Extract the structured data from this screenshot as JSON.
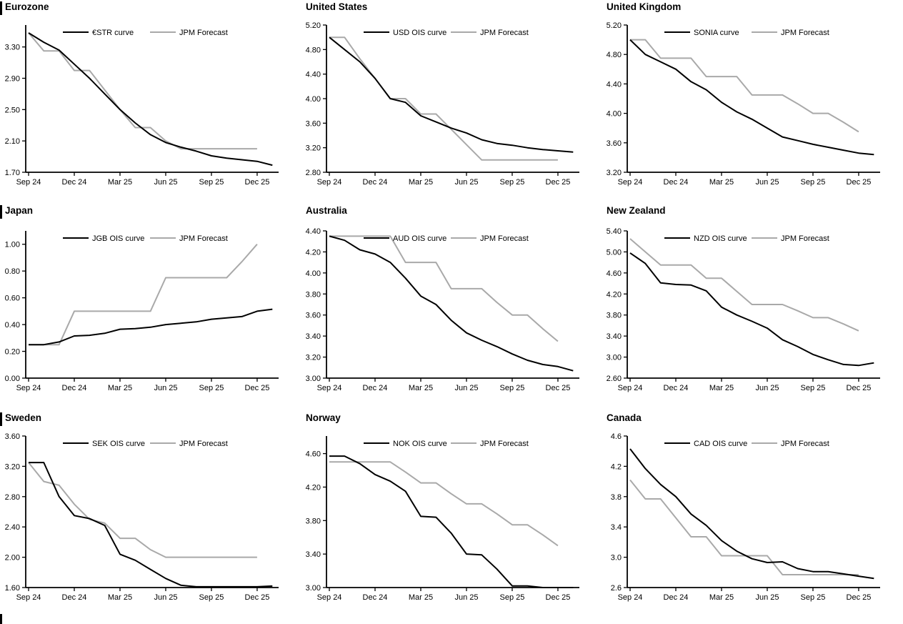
{
  "colors": {
    "ois_line": "#000000",
    "forecast_line": "#a9a9a9",
    "axis": "#000000",
    "background": "#ffffff"
  },
  "x_axis": {
    "tick_labels": [
      "Sep 24",
      "Dec 24",
      "Mar 25",
      "Jun 25",
      "Sep 25",
      "Dec 25"
    ]
  },
  "months": [
    "Sep 24",
    "Oct 24",
    "Nov 24",
    "Dec 24",
    "Jan 25",
    "Feb 25",
    "Mar 25",
    "Apr 25",
    "May 25",
    "Jun 25",
    "Jul 25",
    "Aug 25",
    "Sep 25",
    "Oct 25",
    "Nov 25",
    "Dec 25",
    "Jan 26"
  ],
  "chart_data": [
    {
      "type": "line",
      "title": "Eurozone",
      "edge_bar": true,
      "ylim": [
        1.7,
        3.58
      ],
      "ytick_values": [
        3.3,
        2.9,
        2.5,
        2.1,
        1.7
      ],
      "ytick_labels": [
        "3.30",
        "2.90",
        "2.50",
        "2.10",
        "1.70"
      ],
      "series": [
        {
          "name": "€STR curve",
          "role": "ois",
          "values": [
            3.48,
            3.36,
            3.26,
            3.08,
            2.9,
            2.7,
            2.5,
            2.33,
            2.18,
            2.08,
            2.02,
            1.97,
            1.91,
            1.88,
            1.86,
            1.84,
            1.79
          ]
        },
        {
          "name": "JPM Forecast",
          "role": "forecast",
          "values": [
            3.48,
            3.25,
            3.25,
            3.0,
            3.0,
            2.75,
            2.5,
            2.27,
            2.27,
            2.1,
            2.0,
            2.0,
            2.0,
            2.0,
            2.0,
            2.0
          ]
        }
      ]
    },
    {
      "type": "line",
      "title": "United States",
      "edge_bar": false,
      "ylim": [
        2.8,
        5.2
      ],
      "ytick_values": [
        5.2,
        4.8,
        4.4,
        4.0,
        3.6,
        3.2,
        2.8
      ],
      "ytick_labels": [
        "5.20",
        "4.80",
        "4.40",
        "4.00",
        "3.60",
        "3.20",
        "2.80"
      ],
      "series": [
        {
          "name": "USD OIS curve",
          "role": "ois",
          "values": [
            5.0,
            4.8,
            4.6,
            4.33,
            4.0,
            3.94,
            3.72,
            3.62,
            3.52,
            3.44,
            3.33,
            3.27,
            3.24,
            3.2,
            3.17,
            3.15,
            3.13
          ]
        },
        {
          "name": "JPM Forecast",
          "role": "forecast",
          "values": [
            5.0,
            5.0,
            4.65,
            4.33,
            4.0,
            4.0,
            3.75,
            3.75,
            3.5,
            3.25,
            3.0,
            3.0,
            3.0,
            3.0,
            3.0,
            3.0
          ]
        }
      ]
    },
    {
      "type": "line",
      "title": "United Kingdom",
      "edge_bar": false,
      "ylim": [
        3.2,
        5.2
      ],
      "ytick_values": [
        5.2,
        4.8,
        4.4,
        4.0,
        3.6,
        3.2
      ],
      "ytick_labels": [
        "5.20",
        "4.80",
        "4.40",
        "4.00",
        "3.60",
        "3.20"
      ],
      "series": [
        {
          "name": "SONIA curve",
          "role": "ois",
          "values": [
            5.0,
            4.8,
            4.7,
            4.6,
            4.43,
            4.32,
            4.15,
            4.02,
            3.92,
            3.8,
            3.68,
            3.63,
            3.58,
            3.54,
            3.5,
            3.46,
            3.44
          ]
        },
        {
          "name": "JPM Forecast",
          "role": "forecast",
          "values": [
            5.0,
            5.0,
            4.75,
            4.75,
            4.75,
            4.5,
            4.5,
            4.5,
            4.25,
            4.25,
            4.25,
            4.13,
            4.0,
            4.0,
            3.88,
            3.75
          ]
        }
      ]
    },
    {
      "type": "line",
      "title": "Japan",
      "edge_bar": true,
      "ylim": [
        0.0,
        1.1
      ],
      "ytick_values": [
        1.0,
        0.8,
        0.6,
        0.4,
        0.2,
        0.0
      ],
      "ytick_labels": [
        "1.00",
        "0.80",
        "0.60",
        "0.40",
        "0.20",
        "0.00"
      ],
      "series": [
        {
          "name": "JGB OIS curve",
          "role": "ois",
          "values": [
            0.25,
            0.25,
            0.27,
            0.315,
            0.32,
            0.335,
            0.365,
            0.37,
            0.38,
            0.4,
            0.41,
            0.42,
            0.44,
            0.45,
            0.46,
            0.5,
            0.515
          ]
        },
        {
          "name": "JPM Forecast",
          "role": "forecast",
          "values": [
            0.25,
            0.25,
            0.25,
            0.5,
            0.5,
            0.5,
            0.5,
            0.5,
            0.5,
            0.75,
            0.75,
            0.75,
            0.75,
            0.75,
            0.87,
            1.0
          ]
        }
      ]
    },
    {
      "type": "line",
      "title": "Australia",
      "edge_bar": false,
      "ylim": [
        3.0,
        4.4
      ],
      "ytick_values": [
        4.4,
        4.2,
        4.0,
        3.8,
        3.6,
        3.4,
        3.2,
        3.0
      ],
      "ytick_labels": [
        "4.40",
        "4.20",
        "4.00",
        "3.80",
        "3.60",
        "3.40",
        "3.20",
        "3.00"
      ],
      "series": [
        {
          "name": "AUD OIS curve",
          "role": "ois",
          "values": [
            4.35,
            4.31,
            4.22,
            4.18,
            4.1,
            3.95,
            3.78,
            3.7,
            3.55,
            3.43,
            3.36,
            3.3,
            3.23,
            3.17,
            3.13,
            3.11,
            3.07
          ]
        },
        {
          "name": "JPM Forecast",
          "role": "forecast",
          "values": [
            4.35,
            4.35,
            4.35,
            4.35,
            4.35,
            4.1,
            4.1,
            4.1,
            3.85,
            3.85,
            3.85,
            3.72,
            3.6,
            3.6,
            3.47,
            3.35
          ]
        }
      ]
    },
    {
      "type": "line",
      "title": "New Zealand",
      "edge_bar": false,
      "ylim": [
        2.6,
        5.4
      ],
      "ytick_values": [
        5.4,
        5.0,
        4.6,
        4.2,
        3.8,
        3.4,
        3.0,
        2.6
      ],
      "ytick_labels": [
        "5.40",
        "5.00",
        "4.60",
        "4.20",
        "3.80",
        "3.40",
        "3.00",
        "2.60"
      ],
      "series": [
        {
          "name": "NZD OIS curve",
          "role": "ois",
          "values": [
            4.98,
            4.78,
            4.41,
            4.38,
            4.37,
            4.26,
            3.95,
            3.8,
            3.68,
            3.55,
            3.33,
            3.2,
            3.05,
            2.95,
            2.86,
            2.84,
            2.89
          ]
        },
        {
          "name": "JPM Forecast",
          "role": "forecast",
          "values": [
            5.25,
            5.0,
            4.75,
            4.75,
            4.75,
            4.5,
            4.5,
            4.25,
            4.0,
            4.0,
            4.0,
            3.88,
            3.75,
            3.75,
            3.63,
            3.5
          ]
        }
      ]
    },
    {
      "type": "line",
      "title": "Sweden",
      "edge_bar": true,
      "ylim": [
        1.6,
        3.6
      ],
      "ytick_values": [
        3.6,
        3.2,
        2.8,
        2.4,
        2.0,
        1.6
      ],
      "ytick_labels": [
        "3.60",
        "3.20",
        "2.80",
        "2.40",
        "2.00",
        "1.60"
      ],
      "series": [
        {
          "name": "SEK OIS curve",
          "role": "ois",
          "values": [
            3.25,
            3.25,
            2.8,
            2.55,
            2.51,
            2.42,
            2.04,
            1.96,
            1.84,
            1.72,
            1.63,
            1.61,
            1.61,
            1.61,
            1.61,
            1.61,
            1.62
          ]
        },
        {
          "name": "JPM Forecast",
          "role": "forecast",
          "values": [
            3.25,
            3.0,
            2.95,
            2.7,
            2.5,
            2.45,
            2.25,
            2.25,
            2.1,
            2.0,
            2.0,
            2.0,
            2.0,
            2.0,
            2.0,
            2.0
          ]
        }
      ]
    },
    {
      "type": "line",
      "title": "Norway",
      "edge_bar": false,
      "ylim": [
        3.0,
        4.81
      ],
      "ytick_values": [
        4.6,
        4.2,
        3.8,
        3.4,
        3.0
      ],
      "ytick_labels": [
        "4.60",
        "4.20",
        "3.80",
        "3.40",
        "3.00"
      ],
      "series": [
        {
          "name": "NOK OIS curve",
          "role": "ois",
          "values": [
            4.57,
            4.57,
            4.48,
            4.35,
            4.27,
            4.15,
            3.85,
            3.84,
            3.65,
            3.4,
            3.39,
            3.22,
            3.02,
            3.02,
            3.0,
            3.0,
            3.0
          ]
        },
        {
          "name": "JPM Forecast",
          "role": "forecast",
          "values": [
            4.5,
            4.5,
            4.5,
            4.5,
            4.5,
            4.38,
            4.25,
            4.25,
            4.12,
            4.0,
            4.0,
            3.88,
            3.75,
            3.75,
            3.63,
            3.5
          ]
        }
      ]
    },
    {
      "type": "line",
      "title": "Canada",
      "edge_bar": false,
      "ylim": [
        2.6,
        4.6
      ],
      "ytick_values": [
        4.6,
        4.2,
        3.8,
        3.4,
        3.0,
        2.6
      ],
      "ytick_labels": [
        "4.6",
        "4.2",
        "3.8",
        "3.4",
        "3.0",
        "2.6"
      ],
      "series": [
        {
          "name": "CAD OIS curve",
          "role": "ois",
          "values": [
            4.43,
            4.17,
            3.96,
            3.8,
            3.57,
            3.42,
            3.22,
            3.08,
            2.98,
            2.93,
            2.94,
            2.85,
            2.81,
            2.81,
            2.78,
            2.75,
            2.72
          ]
        },
        {
          "name": "JPM Forecast",
          "role": "forecast",
          "values": [
            4.02,
            3.77,
            3.77,
            3.52,
            3.27,
            3.27,
            3.02,
            3.02,
            3.02,
            3.02,
            2.77,
            2.77,
            2.77,
            2.77,
            2.77,
            2.77
          ]
        }
      ]
    }
  ]
}
